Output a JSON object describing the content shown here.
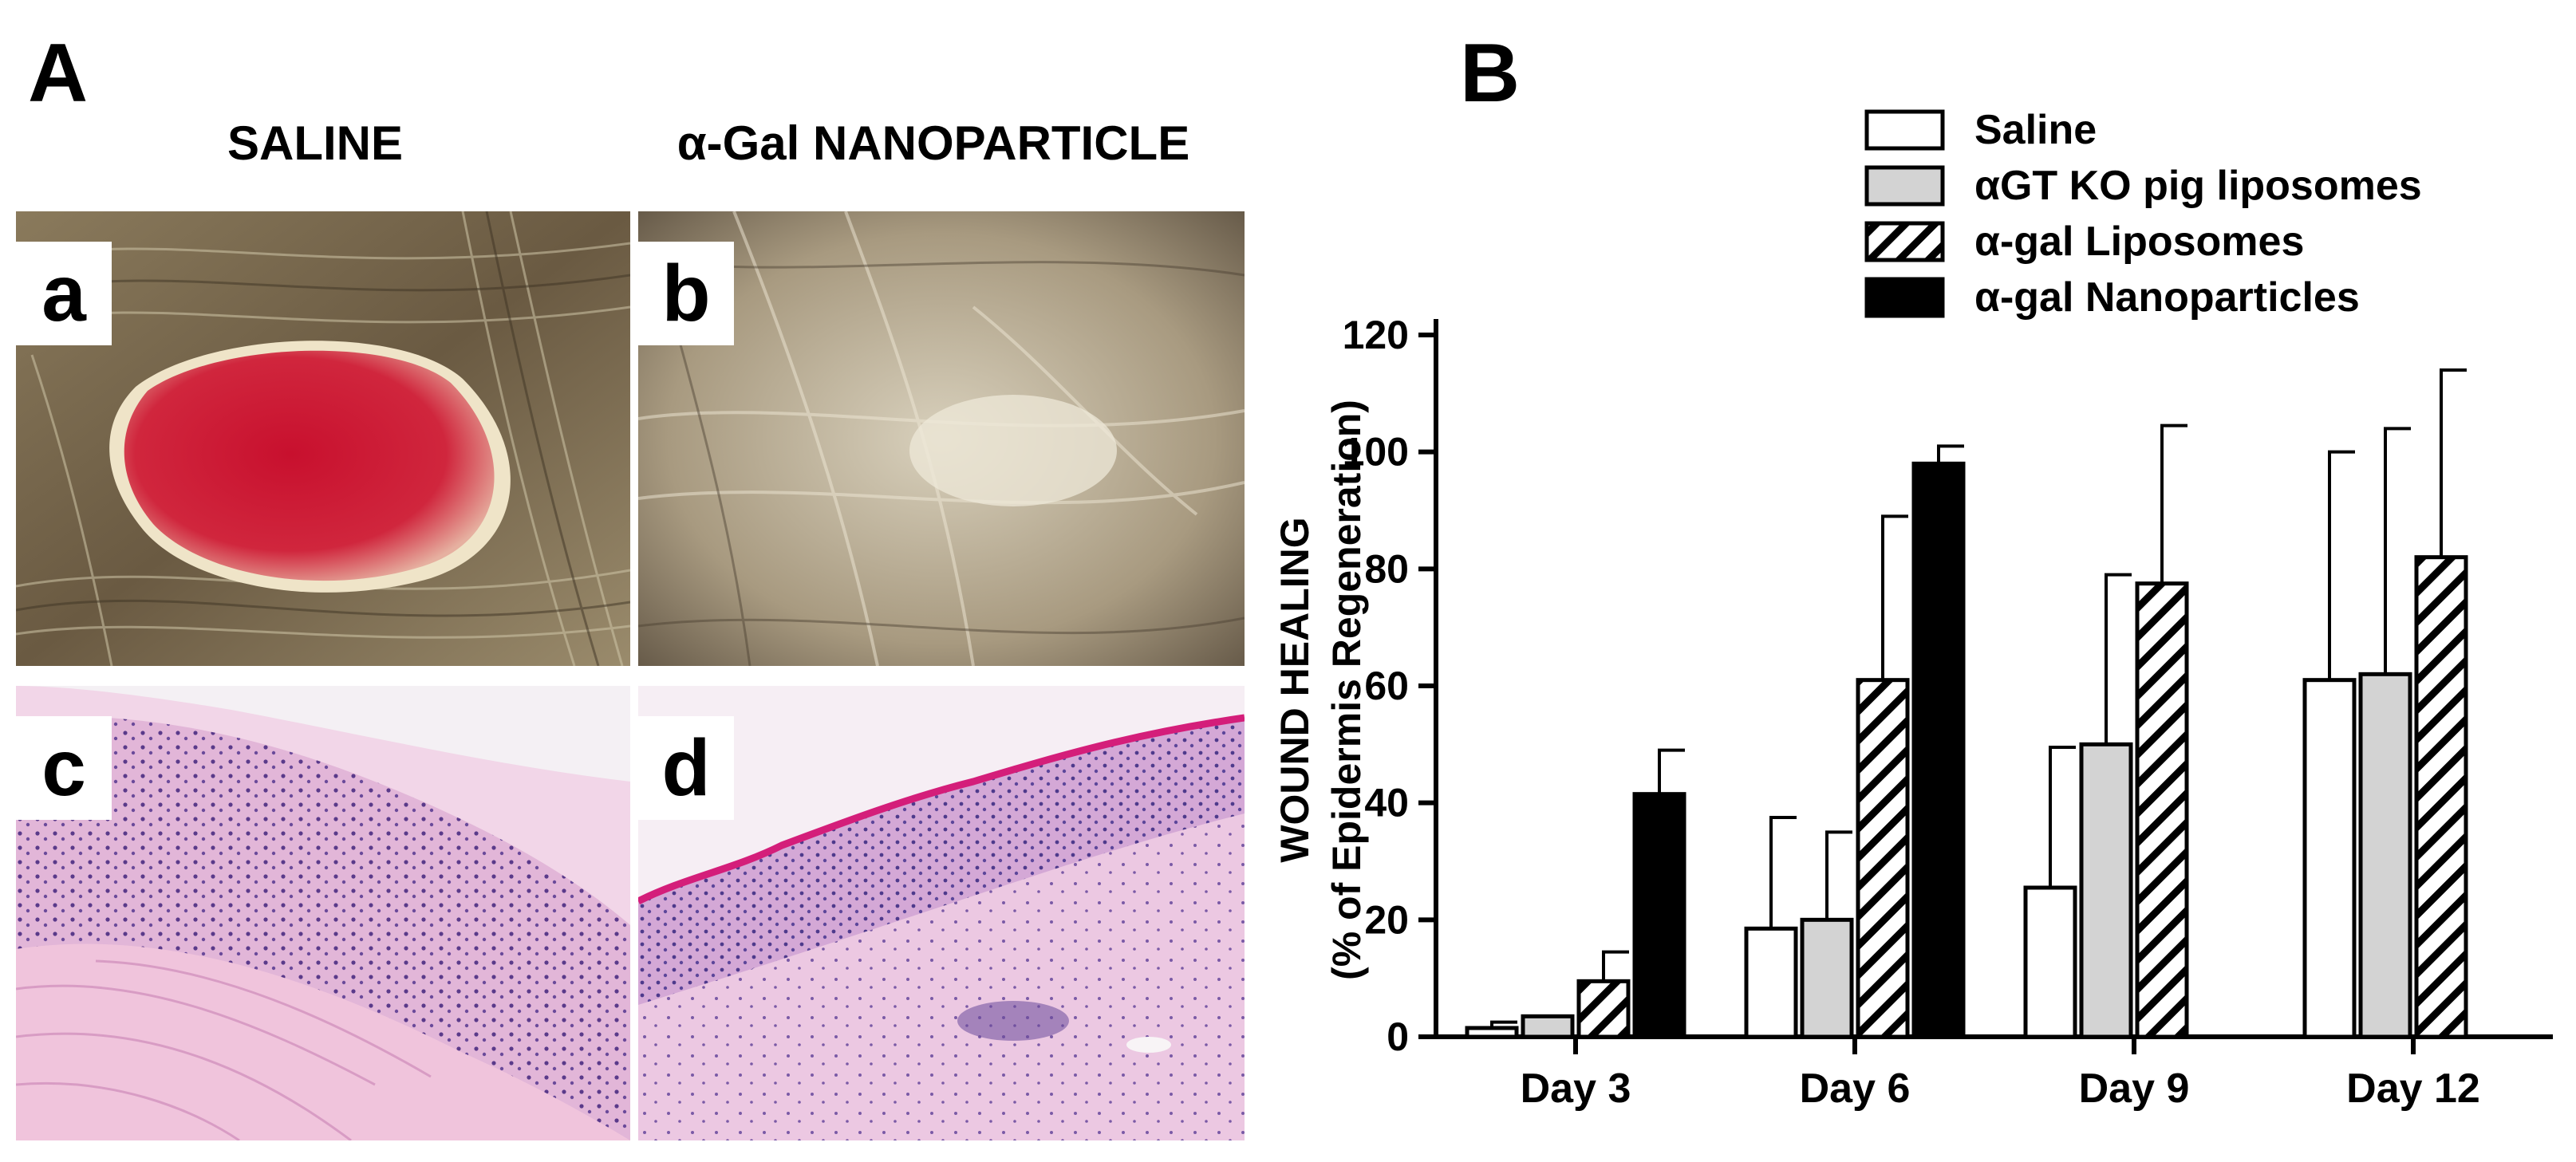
{
  "panel_a": {
    "letter": "A",
    "col_left_title": "SALINE",
    "col_right_title": "α-Gal NANOPARTICLE",
    "photos": [
      {
        "label": "a"
      },
      {
        "label": "b"
      },
      {
        "label": "c"
      },
      {
        "label": "d"
      }
    ]
  },
  "panel_b": {
    "letter": "B"
  },
  "chart_data": {
    "type": "bar",
    "ylabel_line1": "WOUND HEALING",
    "ylabel_line2": "(% of Epidermis Regeneration)",
    "xlabel": "",
    "ylim": [
      0,
      120
    ],
    "yticks": [
      0,
      20,
      40,
      60,
      80,
      100,
      120
    ],
    "categories": [
      "Day 3",
      "Day 6",
      "Day 9",
      "Day 12"
    ],
    "legend_position": "top-right",
    "series": [
      {
        "name": "Saline",
        "fill": "#ffffff",
        "pattern": "none",
        "values": [
          1.5,
          18.5,
          25.5,
          61
        ],
        "errors": [
          1,
          19,
          24,
          39
        ]
      },
      {
        "name": "αGT KO pig liposomes",
        "fill": "#d3d3d3",
        "pattern": "none",
        "values": [
          3.5,
          20,
          50,
          62
        ],
        "errors": [
          0,
          15,
          29,
          42
        ]
      },
      {
        "name": "α-gal Liposomes",
        "fill": "#ffffff",
        "pattern": "hatch",
        "values": [
          9.5,
          61,
          77.5,
          82
        ],
        "errors": [
          5,
          28,
          27,
          32
        ]
      },
      {
        "name": "α-gal Nanoparticles",
        "fill": "#000000",
        "pattern": "none",
        "values": [
          41.5,
          98,
          null,
          null
        ],
        "errors": [
          7.5,
          3,
          null,
          null
        ]
      }
    ]
  }
}
